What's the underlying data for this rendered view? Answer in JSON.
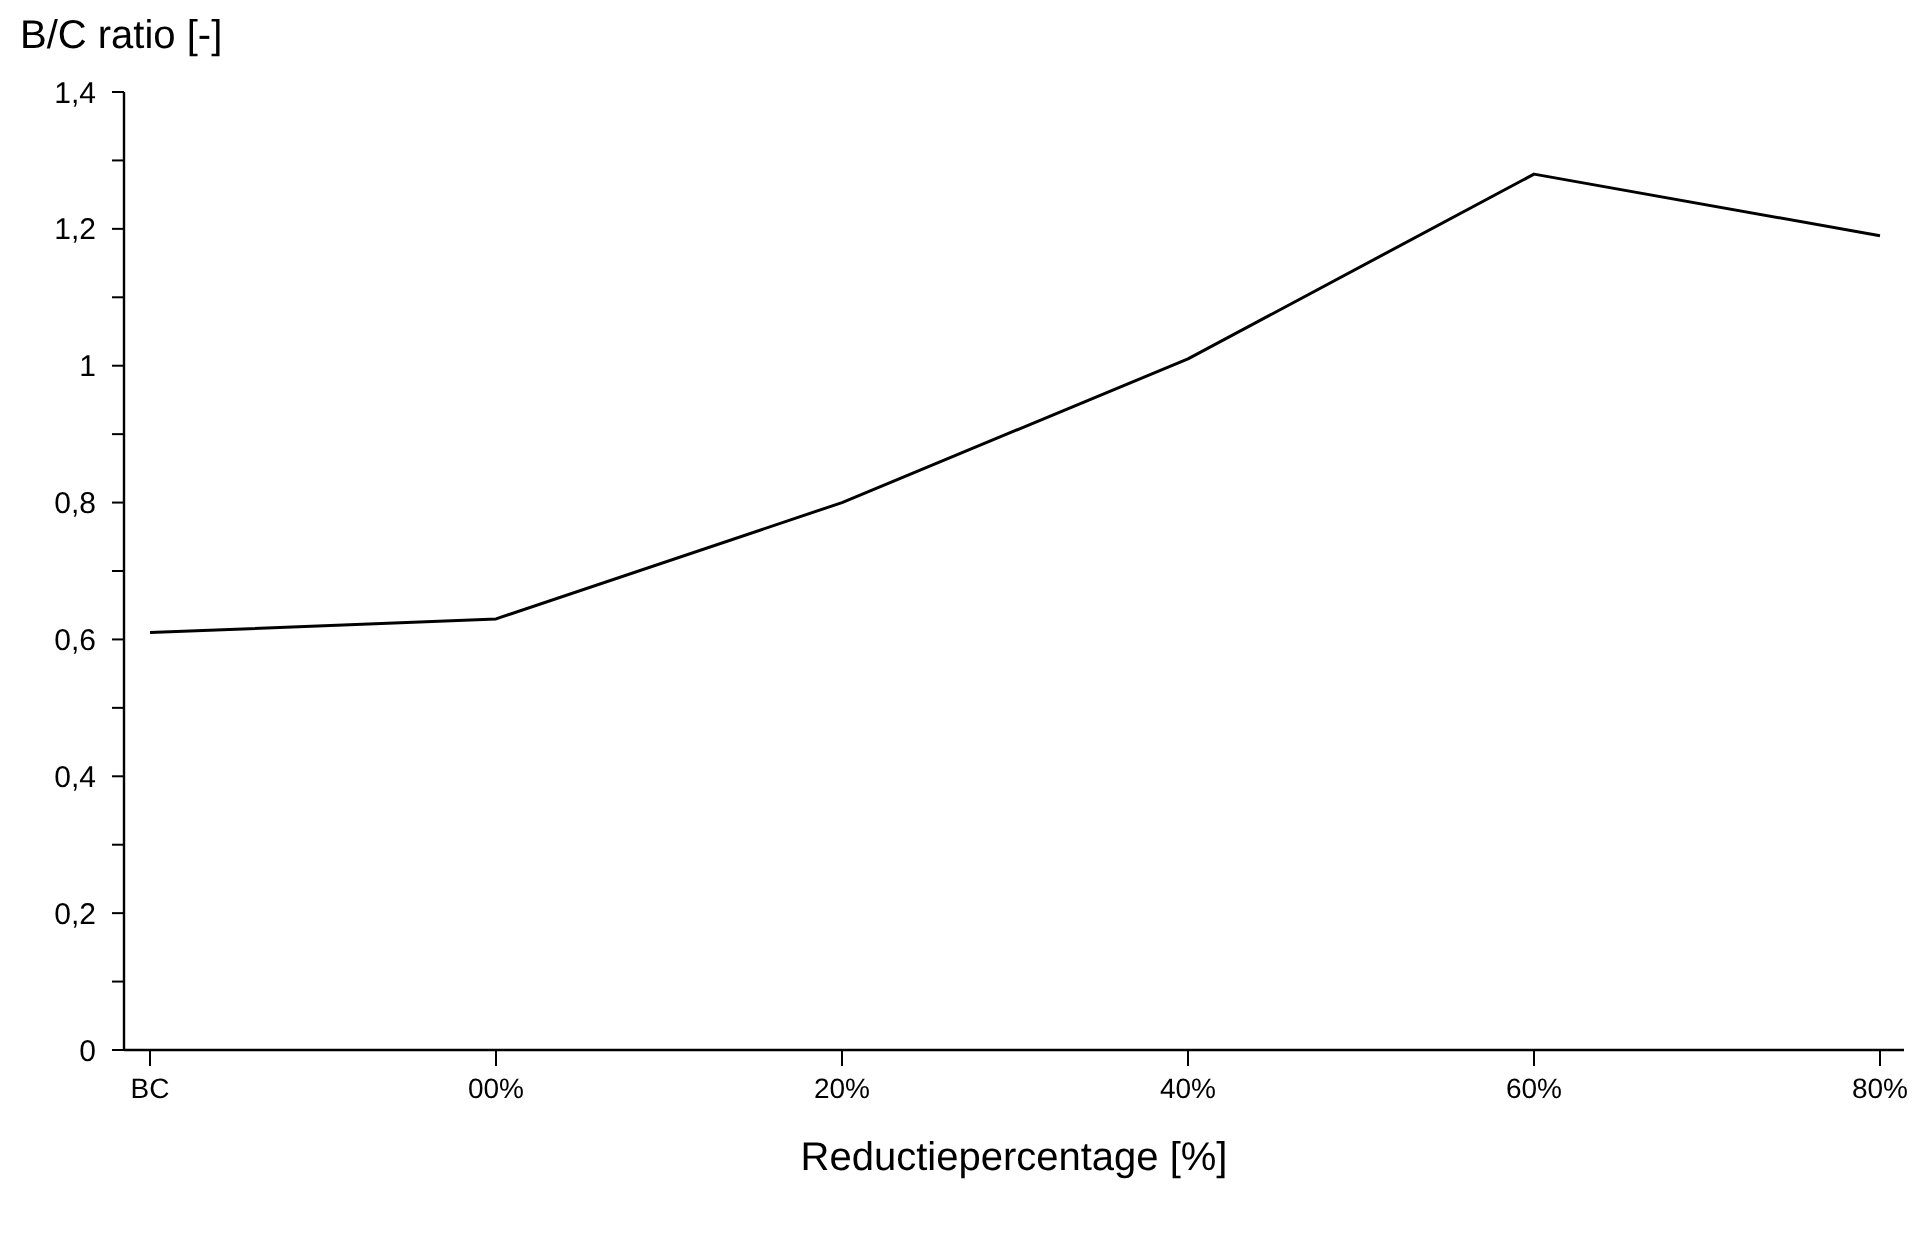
{
  "chart_data": {
    "type": "line",
    "xlabel": "Reductiepercentage [%]",
    "ylabel": "B/C ratio [-]",
    "categories": [
      "BC",
      "00%",
      "20%",
      "40%",
      "60%",
      "80%"
    ],
    "series": [
      {
        "color": "#000000",
        "values": [
          0.61,
          0.63,
          0.8,
          1.01,
          1.28,
          1.19
        ]
      }
    ],
    "ylim": [
      0,
      1.4
    ],
    "yticks": [
      {
        "value": 0,
        "label": "0"
      },
      {
        "value": 0.1,
        "label": null
      },
      {
        "value": 0.2,
        "label": "0,2"
      },
      {
        "value": 0.3,
        "label": null
      },
      {
        "value": 0.4,
        "label": "0,4"
      },
      {
        "value": 0.5,
        "label": null
      },
      {
        "value": 0.6,
        "label": "0,6"
      },
      {
        "value": 0.7,
        "label": null
      },
      {
        "value": 0.8,
        "label": "0,8"
      },
      {
        "value": 0.9,
        "label": null
      },
      {
        "value": 1,
        "label": "1"
      },
      {
        "value": 1.1,
        "label": null
      },
      {
        "value": 1.2,
        "label": "1,2"
      },
      {
        "value": 1.3,
        "label": null
      },
      {
        "value": 1.4,
        "label": "1,4"
      }
    ],
    "grid": false,
    "marker": "none",
    "line_style": "solid"
  }
}
